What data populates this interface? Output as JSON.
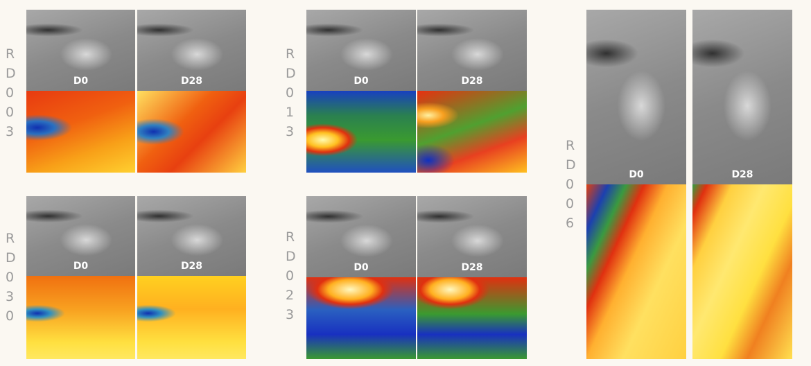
{
  "panels": [
    {
      "subject": "RD003",
      "images": [
        {
          "label": "D0"
        },
        {
          "label": "D28"
        }
      ]
    },
    {
      "subject": "RD030",
      "images": [
        {
          "label": "D0"
        },
        {
          "label": "D28"
        }
      ]
    },
    {
      "subject": "RD013",
      "images": [
        {
          "label": "D0"
        },
        {
          "label": "D28"
        }
      ]
    },
    {
      "subject": "RD023",
      "images": [
        {
          "label": "D0"
        },
        {
          "label": "D28"
        }
      ]
    },
    {
      "subject": "RD006",
      "images": [
        {
          "label": "D0"
        },
        {
          "label": "D28"
        }
      ]
    }
  ]
}
